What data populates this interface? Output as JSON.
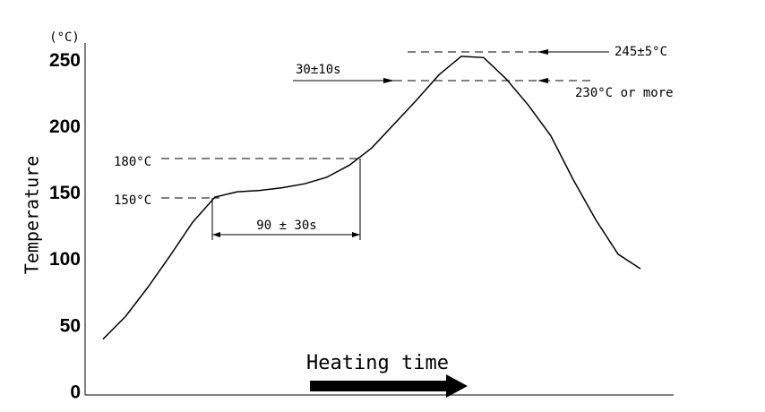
{
  "chart_data": {
    "type": "line",
    "unit_label": "(°C)",
    "ylabel": "Temperature",
    "xlabel": "Heating time",
    "categories": [
      null,
      null,
      null,
      null,
      null,
      null,
      null,
      null,
      null,
      null,
      null,
      null,
      null,
      null,
      null,
      null,
      null,
      null,
      null,
      null,
      null,
      null,
      null,
      null,
      null
    ],
    "values": [
      42,
      59,
      81,
      105,
      130,
      149,
      153,
      154,
      156,
      159,
      164,
      173,
      186,
      204,
      222,
      241,
      255,
      254,
      238,
      218,
      195,
      162,
      132,
      106,
      95
    ],
    "color": "#000000",
    "ylim": [
      0,
      265
    ],
    "yticks": [
      0,
      50,
      100,
      150,
      200,
      250
    ],
    "annotations": {
      "t180": "180°C",
      "t150": "150°C",
      "preheat": "90 ± 30s",
      "reflow": "30±10s",
      "peak": "245±5°C",
      "above": "230°C or more"
    }
  }
}
